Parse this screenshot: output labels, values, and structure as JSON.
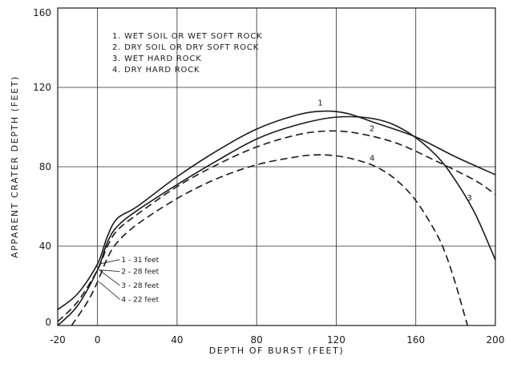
{
  "chart_data": {
    "type": "line",
    "title": "",
    "xlabel": "DEPTH OF BURST (FEET)",
    "ylabel": "APPARENT CRATER DEPTH (FEET)",
    "xlim": [
      -20,
      200
    ],
    "ylim": [
      0,
      160
    ],
    "xticks": [
      -20,
      0,
      40,
      80,
      120,
      160,
      200
    ],
    "xtick_labels": [
      "-20",
      "0",
      "40",
      "80",
      "120",
      "160",
      "200"
    ],
    "yticks": [
      0,
      40,
      80,
      120,
      160
    ],
    "ytick_labels": [
      "0",
      "40",
      "80",
      "120",
      "160"
    ],
    "grid": true,
    "legend_position": "top-left",
    "legend": [
      "1. WET SOIL OR WET SOFT ROCK",
      "2. DRY SOIL OR DRY SOFT ROCK",
      "3. WET HARD ROCK",
      "4. DRY HARD ROCK"
    ],
    "series": [
      {
        "label": "1",
        "style": "solid",
        "x": [
          -20,
          -10,
          0,
          5,
          10,
          20,
          40,
          60,
          80,
          100,
          113,
          125,
          140,
          160,
          180,
          200
        ],
        "y": [
          8,
          16,
          31,
          45,
          54,
          60,
          75,
          88,
          99,
          106,
          108,
          107,
          102,
          95,
          85,
          76
        ]
      },
      {
        "label": "2",
        "style": "dashed",
        "x": [
          -20,
          -10,
          0,
          5,
          10,
          20,
          40,
          60,
          80,
          100,
          115,
          130,
          150,
          170,
          190,
          200
        ],
        "y": [
          2,
          12,
          28,
          40,
          48,
          56,
          70,
          81,
          90,
          96,
          98,
          97,
          92,
          83,
          73,
          66
        ]
      },
      {
        "label": "3",
        "style": "solid",
        "x": [
          -20,
          -10,
          0,
          5,
          10,
          20,
          40,
          60,
          80,
          100,
          120,
          140,
          155,
          170,
          180,
          190,
          200
        ],
        "y": [
          0,
          10,
          28,
          42,
          50,
          58,
          71,
          83,
          94,
          101,
          105,
          104,
          98,
          86,
          73,
          56,
          33
        ]
      },
      {
        "label": "4",
        "style": "dashed",
        "x": [
          -13,
          -5,
          0,
          5,
          10,
          20,
          40,
          60,
          80,
          100,
          110,
          120,
          130,
          140,
          150,
          160,
          170,
          175,
          180,
          184,
          186
        ],
        "y": [
          0,
          12,
          22,
          34,
          42,
          51,
          64,
          74,
          81,
          85,
          86,
          85.5,
          83.5,
          80,
          73.5,
          63,
          47,
          36,
          21,
          7,
          0
        ]
      }
    ],
    "curve_labels": [
      {
        "text": "1",
        "x": 112,
        "y": 111
      },
      {
        "text": "2",
        "x": 138,
        "y": 98
      },
      {
        "text": "3",
        "x": 187,
        "y": 63
      },
      {
        "text": "4",
        "x": 138,
        "y": 83
      }
    ],
    "annotations": [
      {
        "text": "1 - 31 feet",
        "x": 12,
        "y": 32,
        "target_x": 0,
        "target_y": 31
      },
      {
        "text": "2 - 28 feet",
        "x": 12,
        "y": 26,
        "target_x": 0,
        "target_y": 28
      },
      {
        "text": "3 - 28 feet",
        "x": 12,
        "y": 19,
        "target_x": 0,
        "target_y": 28
      },
      {
        "text": "4 - 22 feet",
        "x": 12,
        "y": 12,
        "target_x": 0,
        "target_y": 22
      }
    ]
  }
}
